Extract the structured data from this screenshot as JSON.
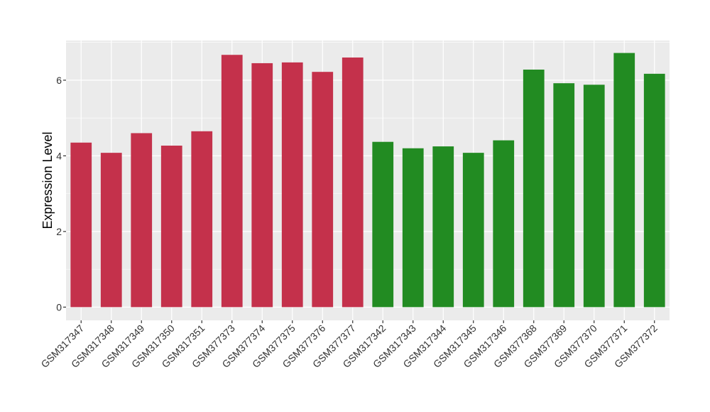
{
  "chart_data": {
    "type": "bar",
    "title": "",
    "xlabel": "",
    "ylabel": "Expression Level",
    "ylim": [
      -0.35,
      7.05
    ],
    "yticks": [
      0,
      2,
      4,
      6
    ],
    "grid": true,
    "colors": {
      "group_a": "#C4314B",
      "group_b": "#228B22",
      "panel": "#EBEBEB",
      "grid": "#FFFFFF"
    },
    "categories": [
      "GSM317347",
      "GSM317348",
      "GSM317349",
      "GSM317350",
      "GSM317351",
      "GSM377373",
      "GSM377374",
      "GSM377375",
      "GSM377376",
      "GSM377377",
      "GSM317342",
      "GSM317343",
      "GSM317344",
      "GSM317345",
      "GSM317346",
      "GSM377368",
      "GSM377369",
      "GSM377370",
      "GSM377371",
      "GSM377372"
    ],
    "values": [
      4.35,
      4.08,
      4.6,
      4.27,
      4.65,
      6.67,
      6.45,
      6.47,
      6.22,
      6.6,
      4.37,
      4.2,
      4.25,
      4.08,
      4.41,
      6.28,
      5.92,
      5.88,
      6.72,
      6.17
    ],
    "bar_colors": [
      "#C4314B",
      "#C4314B",
      "#C4314B",
      "#C4314B",
      "#C4314B",
      "#C4314B",
      "#C4314B",
      "#C4314B",
      "#C4314B",
      "#C4314B",
      "#228B22",
      "#228B22",
      "#228B22",
      "#228B22",
      "#228B22",
      "#228B22",
      "#228B22",
      "#228B22",
      "#228B22",
      "#228B22"
    ]
  }
}
